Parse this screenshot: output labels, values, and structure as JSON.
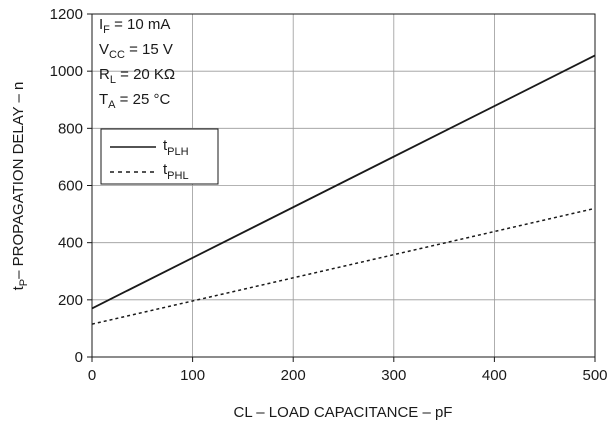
{
  "chart_data": {
    "type": "line",
    "xlabel": "CL – LOAD CAPACITANCE – pF",
    "ylabel": "– PROPAGATION DELAY – n",
    "ylabel_symbol": {
      "main": "t",
      "sub": "P"
    },
    "xlim": [
      0,
      500
    ],
    "ylim": [
      0,
      1200
    ],
    "x_ticks": [
      0,
      100,
      200,
      300,
      400,
      500
    ],
    "y_ticks": [
      0,
      200,
      400,
      600,
      800,
      1000,
      1200
    ],
    "grid": true,
    "x": [
      0,
      500
    ],
    "series": [
      {
        "name": "tPLH",
        "name_main": "t",
        "name_sub": "PLH",
        "style": "solid",
        "values": [
          170,
          1055
        ]
      },
      {
        "name": "tPHL",
        "name_main": "t",
        "name_sub": "PHL",
        "style": "dashed",
        "values": [
          115,
          520
        ]
      }
    ],
    "conditions": [
      {
        "main": "I",
        "sub": "F",
        "rest": " = 10 mA"
      },
      {
        "main": "V",
        "sub": "CC",
        "rest": " = 15 V"
      },
      {
        "main": "R",
        "sub": "L",
        "rest": " = 20 KΩ"
      },
      {
        "main": "T",
        "sub": "A",
        "rest": " = 25 °C"
      }
    ],
    "legend_position": "upper-left"
  }
}
